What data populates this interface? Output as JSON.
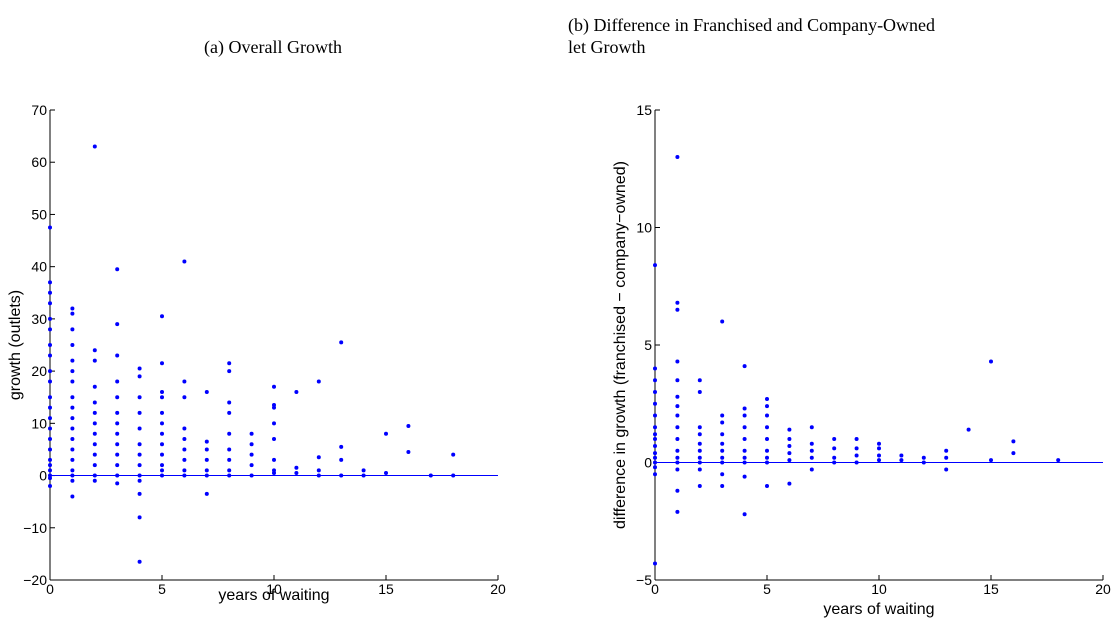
{
  "chart_data": [
    {
      "type": "scatter",
      "title": "(a) Overall Growth",
      "xlabel": "years of waiting",
      "ylabel": "growth (outlets)",
      "color": "#0000ff",
      "xlim": [
        0,
        20
      ],
      "ylim": [
        -20,
        70
      ],
      "xticks": [
        0,
        5,
        10,
        15,
        20
      ],
      "yticks": [
        {
          "value": -20,
          "label": "−20"
        },
        {
          "value": -10,
          "label": "−10"
        },
        0,
        10,
        20,
        30,
        40,
        50,
        60,
        70
      ],
      "hline": 0,
      "x": [
        0,
        0,
        0,
        0,
        0,
        0,
        0,
        0,
        0,
        0,
        0,
        0,
        0,
        0,
        0,
        0,
        0,
        0,
        0,
        0,
        0,
        0,
        1,
        1,
        1,
        1,
        1,
        1,
        1,
        1,
        1,
        1,
        1,
        1,
        1,
        1,
        1,
        1,
        1,
        1,
        2,
        2,
        2,
        2,
        2,
        2,
        2,
        2,
        2,
        2,
        2,
        2,
        2,
        3,
        3,
        3,
        3,
        3,
        3,
        3,
        3,
        3,
        3,
        3,
        3,
        3,
        4,
        4,
        4,
        4,
        4,
        4,
        4,
        4,
        4,
        4,
        4,
        4,
        4,
        5,
        5,
        5,
        5,
        5,
        5,
        5,
        5,
        5,
        5,
        5,
        5,
        6,
        6,
        6,
        6,
        6,
        6,
        6,
        6,
        6,
        7,
        7,
        7,
        7,
        7,
        7,
        7,
        8,
        8,
        8,
        8,
        8,
        8,
        8,
        8,
        8,
        9,
        9,
        9,
        9,
        9,
        10,
        10,
        10,
        10,
        10,
        10,
        10,
        10,
        11,
        11,
        11,
        12,
        12,
        12,
        12,
        13,
        13,
        13,
        13,
        14,
        14,
        15,
        15,
        16,
        16,
        17,
        18,
        18
      ],
      "values": [
        47.5,
        37,
        35,
        33,
        30,
        28,
        25,
        23,
        20,
        18,
        15,
        13,
        11,
        9,
        7,
        5,
        3,
        2,
        1,
        0,
        -0.5,
        -2,
        32,
        31,
        28,
        25,
        22,
        20,
        18,
        15,
        13,
        11,
        9,
        7,
        5,
        3,
        1,
        0,
        -1,
        -4,
        63,
        24,
        22,
        17,
        14,
        12,
        10,
        8,
        6,
        4,
        2,
        0,
        -1,
        39.5,
        29,
        23,
        18,
        15,
        12,
        10,
        8,
        6,
        4,
        2,
        0,
        -1.5,
        20.5,
        19,
        15,
        12,
        9,
        6,
        4,
        2,
        0,
        -1,
        -3.5,
        -8,
        -16.5,
        30.5,
        21.5,
        16,
        15,
        12,
        10,
        8,
        6,
        4,
        2,
        1,
        0,
        41,
        18,
        15,
        9,
        7,
        5,
        3,
        1,
        0,
        16,
        6.5,
        5,
        3,
        1,
        0,
        -3.5,
        21.5,
        20,
        14,
        12,
        8,
        5,
        3,
        1,
        0,
        8,
        6,
        4,
        2,
        0,
        17,
        13.5,
        13,
        10,
        7,
        3,
        1,
        0.5,
        16,
        1.5,
        0.5,
        18,
        3.5,
        1,
        0,
        25.5,
        5.5,
        3,
        0,
        1,
        0,
        8,
        0.5,
        9.5,
        4.5,
        0,
        4,
        0
      ]
    },
    {
      "type": "scatter",
      "title": "(b) Difference in Franchised and Company-Owned\nlet Growth",
      "xlabel": "years of waiting",
      "ylabel": "difference in growth (franchised − company−owned)",
      "color": "#0000ff",
      "xlim": [
        0,
        20
      ],
      "ylim": [
        -5,
        15
      ],
      "xticks": [
        0,
        5,
        10,
        15,
        20
      ],
      "yticks": [
        {
          "value": -5,
          "label": "−5"
        },
        0,
        5,
        10,
        15
      ],
      "hline": 0,
      "x": [
        0,
        0,
        0,
        0,
        0,
        0,
        0,
        0,
        0,
        0,
        0,
        0,
        0,
        0,
        0,
        0,
        1,
        1,
        1,
        1,
        1,
        1,
        1,
        1,
        1,
        1,
        1,
        1,
        1,
        1,
        1,
        1,
        2,
        2,
        2,
        2,
        2,
        2,
        2,
        2,
        2,
        2,
        3,
        3,
        3,
        3,
        3,
        3,
        3,
        3,
        3,
        3,
        4,
        4,
        4,
        4,
        4,
        4,
        4,
        4,
        4,
        4,
        5,
        5,
        5,
        5,
        5,
        5,
        5,
        5,
        5,
        6,
        6,
        6,
        6,
        6,
        6,
        7,
        7,
        7,
        7,
        7,
        8,
        8,
        8,
        8,
        9,
        9,
        9,
        9,
        10,
        10,
        10,
        10,
        11,
        11,
        12,
        12,
        13,
        13,
        13,
        14,
        15,
        15,
        16,
        16,
        18
      ],
      "values": [
        8.4,
        4,
        3.5,
        3,
        2.5,
        2,
        1.5,
        1.2,
        1,
        0.7,
        0.4,
        0.2,
        0,
        -0.2,
        -0.5,
        -4.3,
        13,
        6.8,
        6.5,
        4.3,
        3.5,
        2.8,
        2.4,
        2,
        1.5,
        1,
        0.5,
        0.2,
        0,
        -0.3,
        -1.2,
        -2.1,
        3.5,
        3,
        1.5,
        1.2,
        0.8,
        0.5,
        0.2,
        0,
        -0.3,
        -1,
        6,
        2,
        1.7,
        1.2,
        0.8,
        0.5,
        0.2,
        0,
        -0.5,
        -1,
        4.1,
        2.3,
        2,
        1.5,
        1,
        0.5,
        0.2,
        0,
        -0.6,
        -2.2,
        2.7,
        2.4,
        2,
        1.5,
        1,
        0.5,
        0.2,
        0,
        -1,
        1.4,
        1,
        0.7,
        0.4,
        0.1,
        -0.9,
        1.5,
        0.8,
        0.5,
        0.2,
        -0.3,
        1,
        0.6,
        0.2,
        0,
        1,
        0.6,
        0.3,
        0,
        0.8,
        0.6,
        0.3,
        0.1,
        0.3,
        0.1,
        0.2,
        0,
        0.5,
        0.2,
        -0.3,
        1.4,
        4.3,
        0.1,
        0.9,
        0.4,
        0.1
      ]
    }
  ]
}
